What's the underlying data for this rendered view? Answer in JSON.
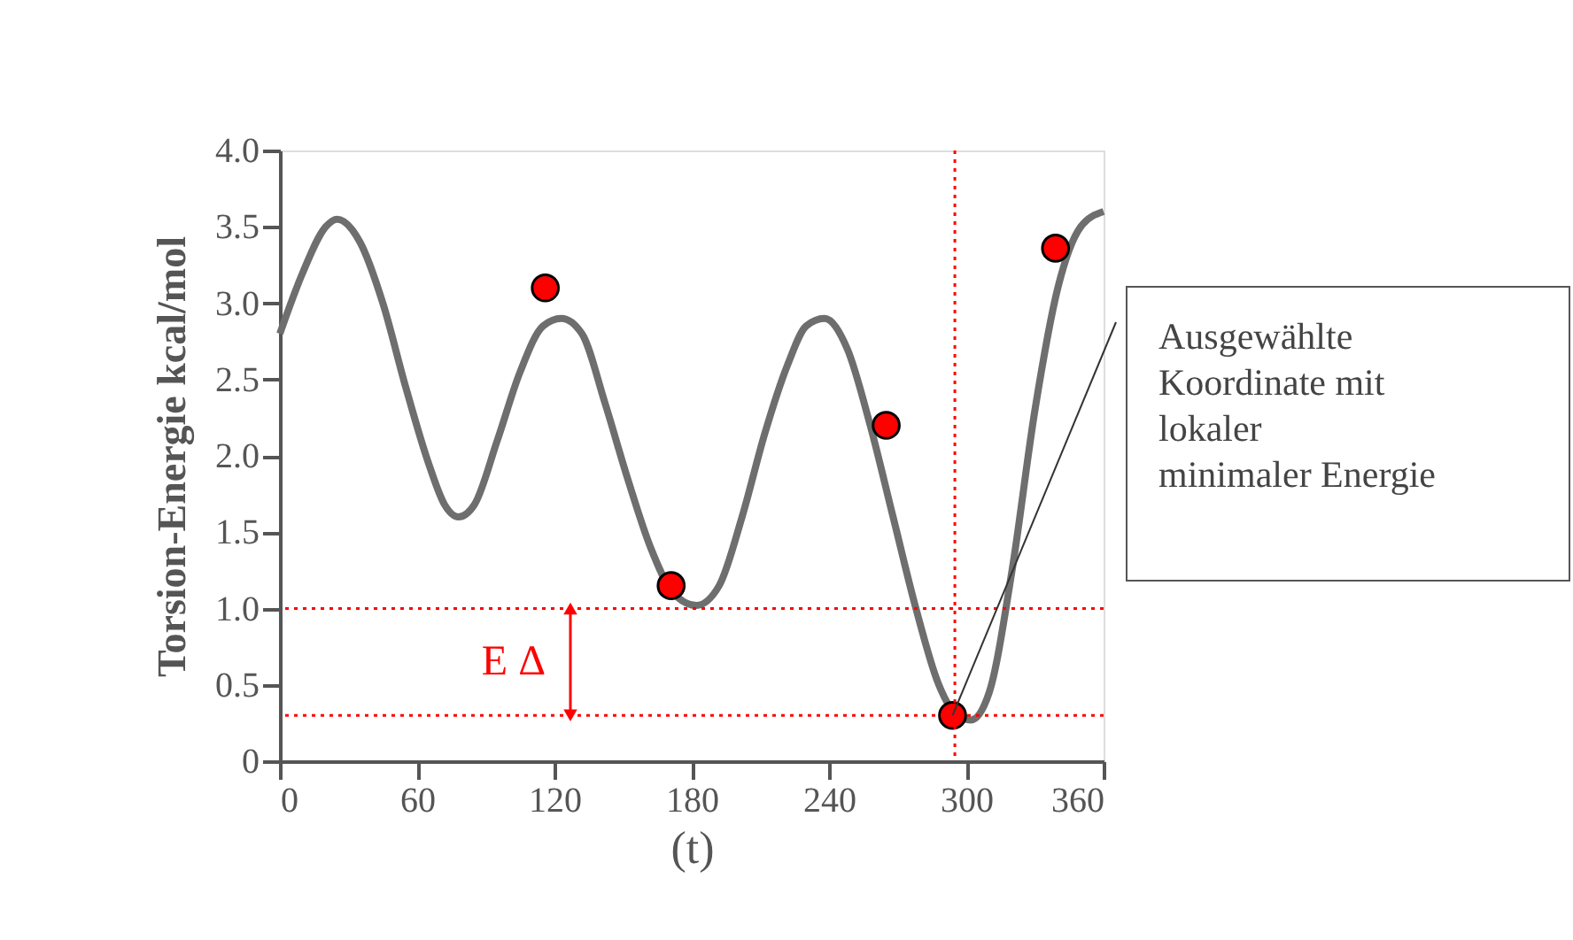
{
  "chart_data": {
    "type": "line",
    "xlabel": "(t)",
    "ylabel": "Torsion-Energie  kcal/mol",
    "xlim": [
      0,
      360
    ],
    "xticks": [
      0,
      60,
      120,
      180,
      240,
      300,
      360
    ],
    "ylim": [
      0,
      4.0
    ],
    "yticks": [
      0,
      {
        "value": 0.5,
        "label": "0.5"
      },
      {
        "value": 1,
        "label": "1.0"
      },
      {
        "value": 1.5,
        "label": "1.5"
      },
      {
        "value": 2,
        "label": "2.0"
      },
      {
        "value": 2.5,
        "label": "2.5"
      },
      {
        "value": 3,
        "label": "3.0"
      },
      {
        "value": 3.5,
        "label": "3.5"
      },
      {
        "value": 4,
        "label": "4.0"
      }
    ],
    "grid": false,
    "series": [
      {
        "color": "#6e6e6e",
        "x": [
          0,
          10,
          20,
          25,
          35,
          45,
          55,
          65,
          72,
          78,
          85,
          95,
          105,
          115,
          123,
          132,
          142,
          152,
          162,
          172,
          182,
          192,
          202,
          212,
          222,
          230,
          238,
          248,
          258,
          268,
          278,
          288,
          296,
          302,
          310,
          320,
          330,
          340,
          350,
          360
        ],
        "values": [
          2.8,
          3.2,
          3.5,
          3.55,
          3.4,
          3.0,
          2.45,
          1.95,
          1.68,
          1.6,
          1.68,
          2.1,
          2.55,
          2.85,
          2.9,
          2.8,
          2.35,
          1.85,
          1.4,
          1.1,
          1.02,
          1.15,
          1.6,
          2.15,
          2.6,
          2.85,
          2.9,
          2.7,
          2.2,
          1.6,
          1.0,
          0.5,
          0.3,
          0.27,
          0.45,
          1.25,
          2.3,
          3.1,
          3.5,
          3.6
        ]
      },
      {
        "type": "scatter",
        "color": "#ff0000",
        "marker": "circle",
        "x": [
          116,
          171,
          265,
          294,
          339
        ],
        "values": [
          3.1,
          1.15,
          2.2,
          0.3,
          3.36
        ]
      }
    ],
    "ref_lines": [
      {
        "axis": "y",
        "value": 1.0,
        "color": "#ff0000",
        "line_style": "dotted"
      },
      {
        "axis": "y",
        "value": 0.3,
        "color": "#ff0000",
        "line_style": "dotted"
      },
      {
        "axis": "x",
        "value": 295,
        "color": "#ff0000",
        "line_style": "dotted"
      }
    ],
    "annotations": [
      "E Δ",
      {
        "text": "Ausgewählte\nKoordinate mit\nlokaler\nminimaler Energie",
        "x": 294,
        "y": 0.3
      }
    ]
  }
}
